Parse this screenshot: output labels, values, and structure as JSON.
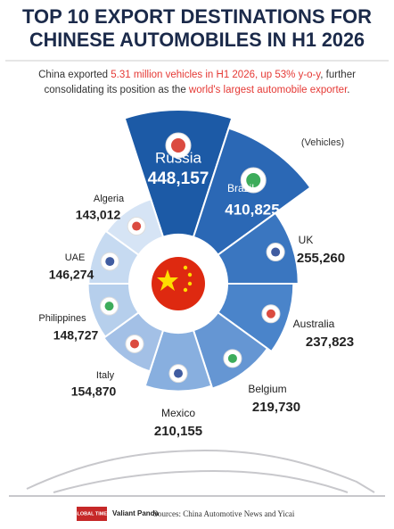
{
  "chart_data": {
    "type": "rose",
    "title": [
      "TOP 10 EXPORT DESTINATIONS FOR",
      "CHINESE AUTOMOBILES IN H1 2026"
    ],
    "subtitle": [
      [
        "China exported ",
        "5.31 million vehicles in H1 2026, up 53% y-o-y",
        ", further"
      ],
      [
        "consolidating its position as the ",
        "world's largest automobile exporter",
        "."
      ]
    ],
    "highlight_color": "#e53935",
    "unit": "(Vehicles)",
    "categories": [
      "Russia",
      "Brazil",
      "UK",
      "Australia",
      "Belgium",
      "Mexico",
      "Italy",
      "Philippines",
      "UAE",
      "Algeria"
    ],
    "values": [
      448157,
      410825,
      255260,
      237823,
      219730,
      210155,
      154870,
      148727,
      146274,
      143012
    ],
    "value_labels": [
      "448,157",
      "410,825",
      "255,260",
      "237,823",
      "219,730",
      "210,155",
      "154,870",
      "148,727",
      "146,274",
      "143,012"
    ],
    "colors": [
      "#1c5aa6",
      "#2b68b5",
      "#3a76c0",
      "#4a84ca",
      "#6596d3",
      "#88afdf",
      "#a3c0e6",
      "#b6cfec",
      "#c6daf1",
      "#d6e4f5"
    ],
    "source": "Sources: China Automotive News and Yicai",
    "logos": [
      "GLOBAL TIMES",
      "Valiant Panda"
    ]
  }
}
